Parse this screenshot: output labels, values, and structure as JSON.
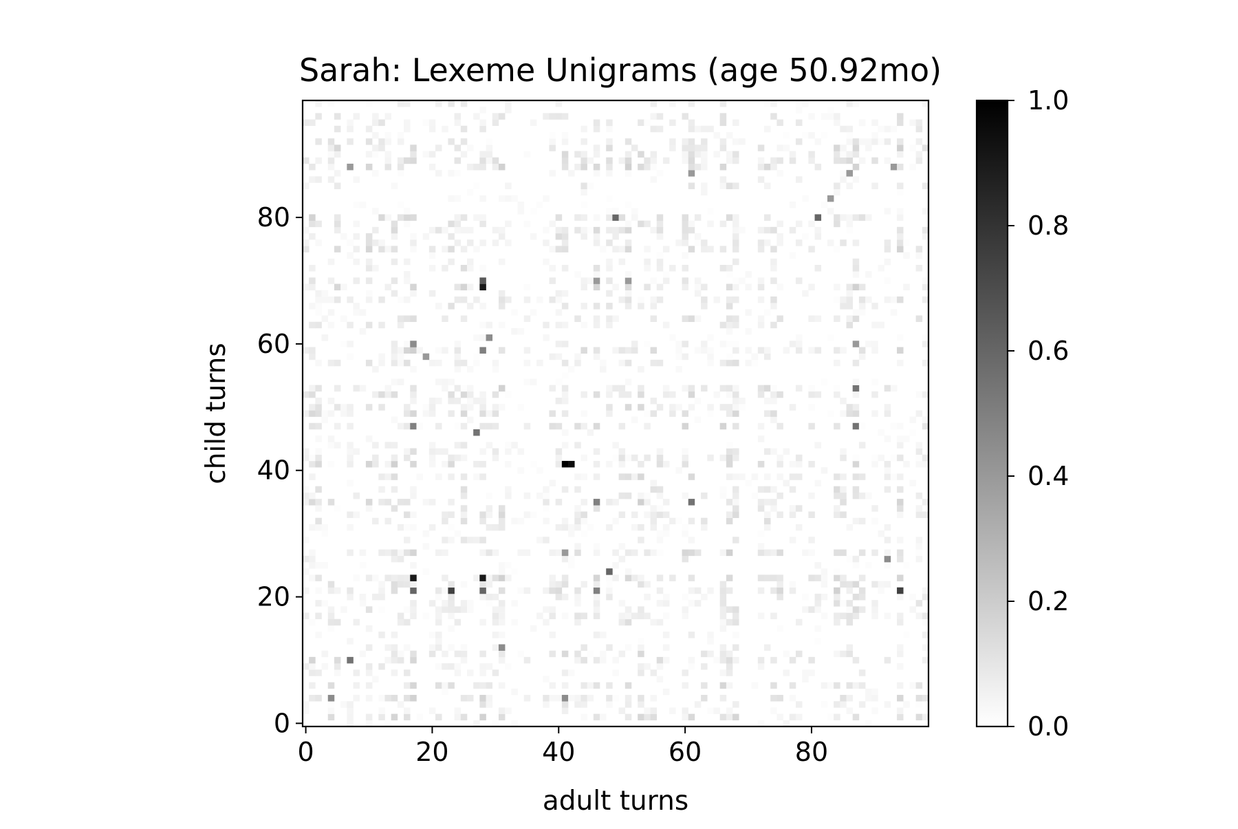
{
  "chart_data": {
    "type": "heatmap",
    "title": "Sarah: Lexeme Unigrams (age 50.92mo)",
    "xlabel": "adult turns",
    "ylabel": "child turns",
    "x_ticks": [
      "0",
      "20",
      "40",
      "60",
      "80"
    ],
    "y_ticks": [
      "0",
      "20",
      "40",
      "60",
      "80"
    ],
    "colorbar_ticks": [
      "0.0",
      "0.2",
      "0.4",
      "0.6",
      "0.8",
      "1.0"
    ],
    "xlim": [
      -0.5,
      98.5
    ],
    "ylim": [
      -0.5,
      98.5
    ],
    "grid_size": [
      99,
      99
    ],
    "colormap": "Greys",
    "value_range": [
      0,
      1
    ],
    "grid": false,
    "colorbar_position": "right",
    "notable_cells": [
      {
        "x": 41,
        "y": 41,
        "value": 1.0
      },
      {
        "x": 42,
        "y": 41,
        "value": 0.95
      },
      {
        "x": 28,
        "y": 69,
        "value": 0.9
      },
      {
        "x": 17,
        "y": 23,
        "value": 0.9
      },
      {
        "x": 28,
        "y": 23,
        "value": 0.9
      },
      {
        "x": 23,
        "y": 21,
        "value": 0.75
      },
      {
        "x": 94,
        "y": 21,
        "value": 0.75
      },
      {
        "x": 28,
        "y": 70,
        "value": 0.65
      },
      {
        "x": 17,
        "y": 21,
        "value": 0.6
      },
      {
        "x": 28,
        "y": 21,
        "value": 0.6
      },
      {
        "x": 48,
        "y": 24,
        "value": 0.6
      },
      {
        "x": 49,
        "y": 80,
        "value": 0.6
      },
      {
        "x": 81,
        "y": 80,
        "value": 0.6
      },
      {
        "x": 87,
        "y": 47,
        "value": 0.55
      },
      {
        "x": 7,
        "y": 10,
        "value": 0.55
      },
      {
        "x": 87,
        "y": 53,
        "value": 0.55
      },
      {
        "x": 61,
        "y": 35,
        "value": 0.55
      },
      {
        "x": 27,
        "y": 46,
        "value": 0.55
      },
      {
        "x": 17,
        "y": 47,
        "value": 0.5
      },
      {
        "x": 28,
        "y": 59,
        "value": 0.5
      },
      {
        "x": 46,
        "y": 35,
        "value": 0.5
      },
      {
        "x": 46,
        "y": 21,
        "value": 0.5
      },
      {
        "x": 4,
        "y": 4,
        "value": 0.45
      },
      {
        "x": 41,
        "y": 4,
        "value": 0.45
      },
      {
        "x": 17,
        "y": 60,
        "value": 0.45
      },
      {
        "x": 29,
        "y": 61,
        "value": 0.45
      },
      {
        "x": 92,
        "y": 26,
        "value": 0.45
      },
      {
        "x": 31,
        "y": 12,
        "value": 0.45
      },
      {
        "x": 41,
        "y": 27,
        "value": 0.4
      },
      {
        "x": 19,
        "y": 58,
        "value": 0.4
      },
      {
        "x": 46,
        "y": 70,
        "value": 0.4
      },
      {
        "x": 51,
        "y": 70,
        "value": 0.4
      },
      {
        "x": 83,
        "y": 83,
        "value": 0.4
      },
      {
        "x": 87,
        "y": 60,
        "value": 0.4
      },
      {
        "x": 7,
        "y": 88,
        "value": 0.4
      },
      {
        "x": 61,
        "y": 87,
        "value": 0.4
      },
      {
        "x": 86,
        "y": 87,
        "value": 0.4
      },
      {
        "x": 93,
        "y": 88,
        "value": 0.4
      }
    ]
  }
}
